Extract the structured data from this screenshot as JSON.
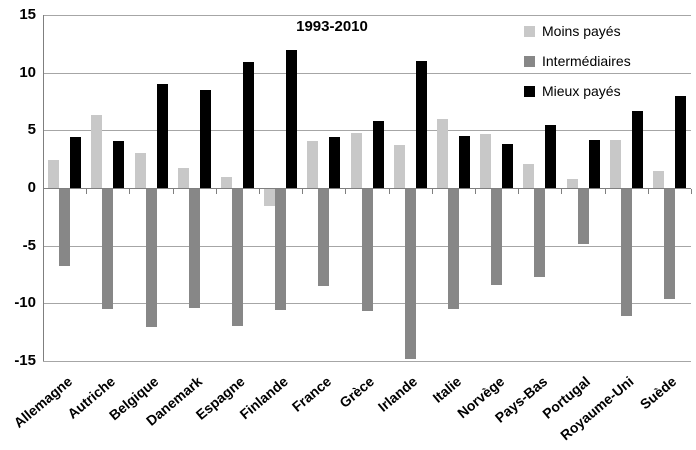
{
  "title": "1993-2010",
  "colors": {
    "moins_payes": "#c8c8c8",
    "intermediaires": "#878787",
    "mieux_payes": "#000000",
    "gridline": "#a6a6a6",
    "axis": "#7f7f7f",
    "background": "#ffffff",
    "text": "#000000"
  },
  "chart_data": {
    "type": "bar",
    "title": "1993-2010",
    "categories": [
      "Allemagne",
      "Autriche",
      "Belgique",
      "Danemark",
      "Espagne",
      "Finlande",
      "France",
      "Grèce",
      "Irlande",
      "Italie",
      "Norvège",
      "Pays-Bas",
      "Portugal",
      "Royaume-Uni",
      "Suède"
    ],
    "series": [
      {
        "name": "Moins payés",
        "color": "#c8c8c8",
        "values": [
          2.4,
          6.3,
          3.0,
          1.7,
          1.0,
          -1.5,
          4.1,
          4.8,
          3.7,
          6.0,
          4.7,
          2.1,
          0.8,
          4.2,
          1.5
        ]
      },
      {
        "name": "Intermédiaires",
        "color": "#878787",
        "values": [
          -6.7,
          -10.4,
          -12.0,
          -10.3,
          -11.9,
          -10.5,
          -8.4,
          -10.6,
          -14.7,
          -10.4,
          -8.3,
          -7.6,
          -4.8,
          -11.0,
          -9.5
        ]
      },
      {
        "name": "Mieux payés",
        "color": "#000000",
        "values": [
          4.4,
          4.1,
          9.0,
          8.5,
          10.9,
          12.0,
          4.4,
          5.8,
          11.0,
          4.5,
          3.8,
          5.5,
          4.2,
          6.7,
          8.0
        ]
      }
    ],
    "xlabel": "",
    "ylabel": "",
    "ylim": [
      -15,
      15
    ],
    "yticks": [
      15,
      10,
      5,
      0,
      -5,
      -10,
      -15
    ],
    "grid": true,
    "legend_position": "top-right"
  }
}
